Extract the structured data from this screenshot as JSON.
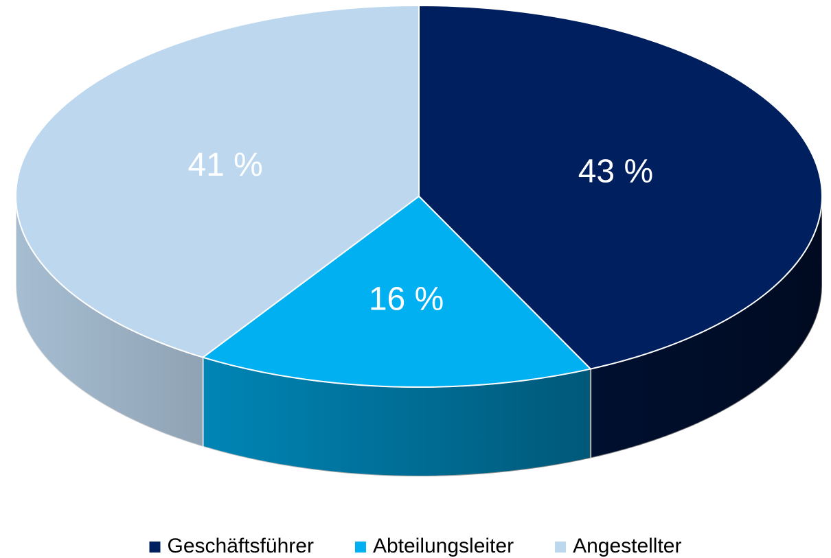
{
  "chart_data": {
    "type": "pie",
    "categories": [
      "Geschäftsführer",
      "Abteilungsleiter",
      "Angestellter"
    ],
    "values": [
      43,
      16,
      41
    ],
    "value_labels": [
      "43 %",
      "16 %",
      "41 %"
    ],
    "colors": [
      "#001f5f",
      "#00b0f0",
      "#bdd7ee"
    ],
    "legend": "bottom"
  }
}
